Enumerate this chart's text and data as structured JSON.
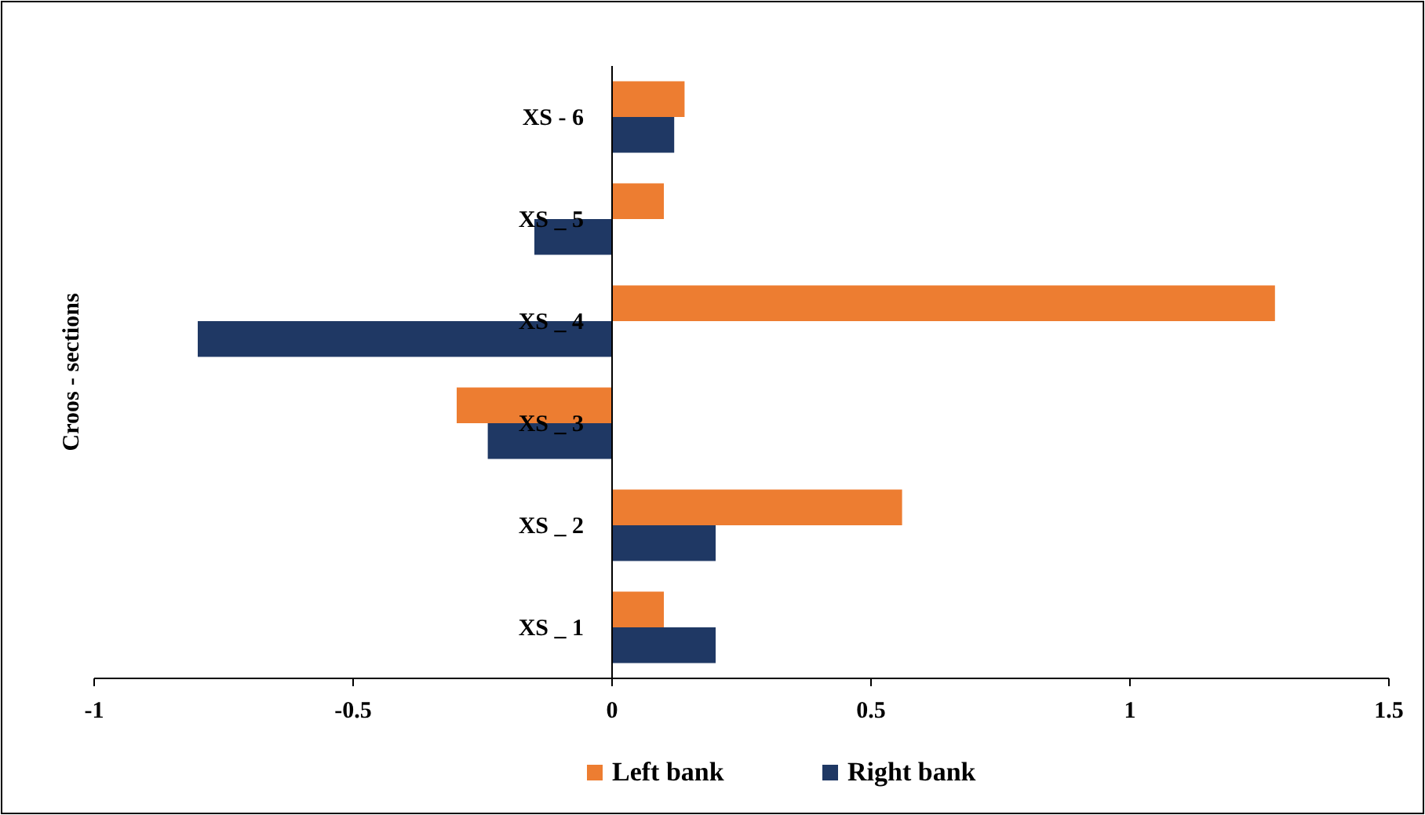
{
  "chart_data": {
    "type": "bar",
    "orientation": "horizontal",
    "ylabel": "Croos - sections",
    "categories": [
      "XS - 6",
      "XS _ 5",
      "XS _ 4",
      "XS _ 3",
      "XS _ 2",
      "XS _ 1"
    ],
    "series": [
      {
        "name": "Left bank",
        "color": "#ed7d31",
        "values": [
          0.14,
          0.1,
          1.28,
          -0.3,
          0.56,
          0.1
        ]
      },
      {
        "name": "Right bank",
        "color": "#1f3864",
        "values": [
          0.12,
          -0.15,
          -0.8,
          -0.24,
          0.2,
          0.2
        ]
      }
    ],
    "xlim": [
      -1,
      1.5
    ],
    "xticks": [
      -1,
      -0.5,
      0,
      0.5,
      1,
      1.5
    ],
    "grid": false,
    "legend": "bottom"
  }
}
